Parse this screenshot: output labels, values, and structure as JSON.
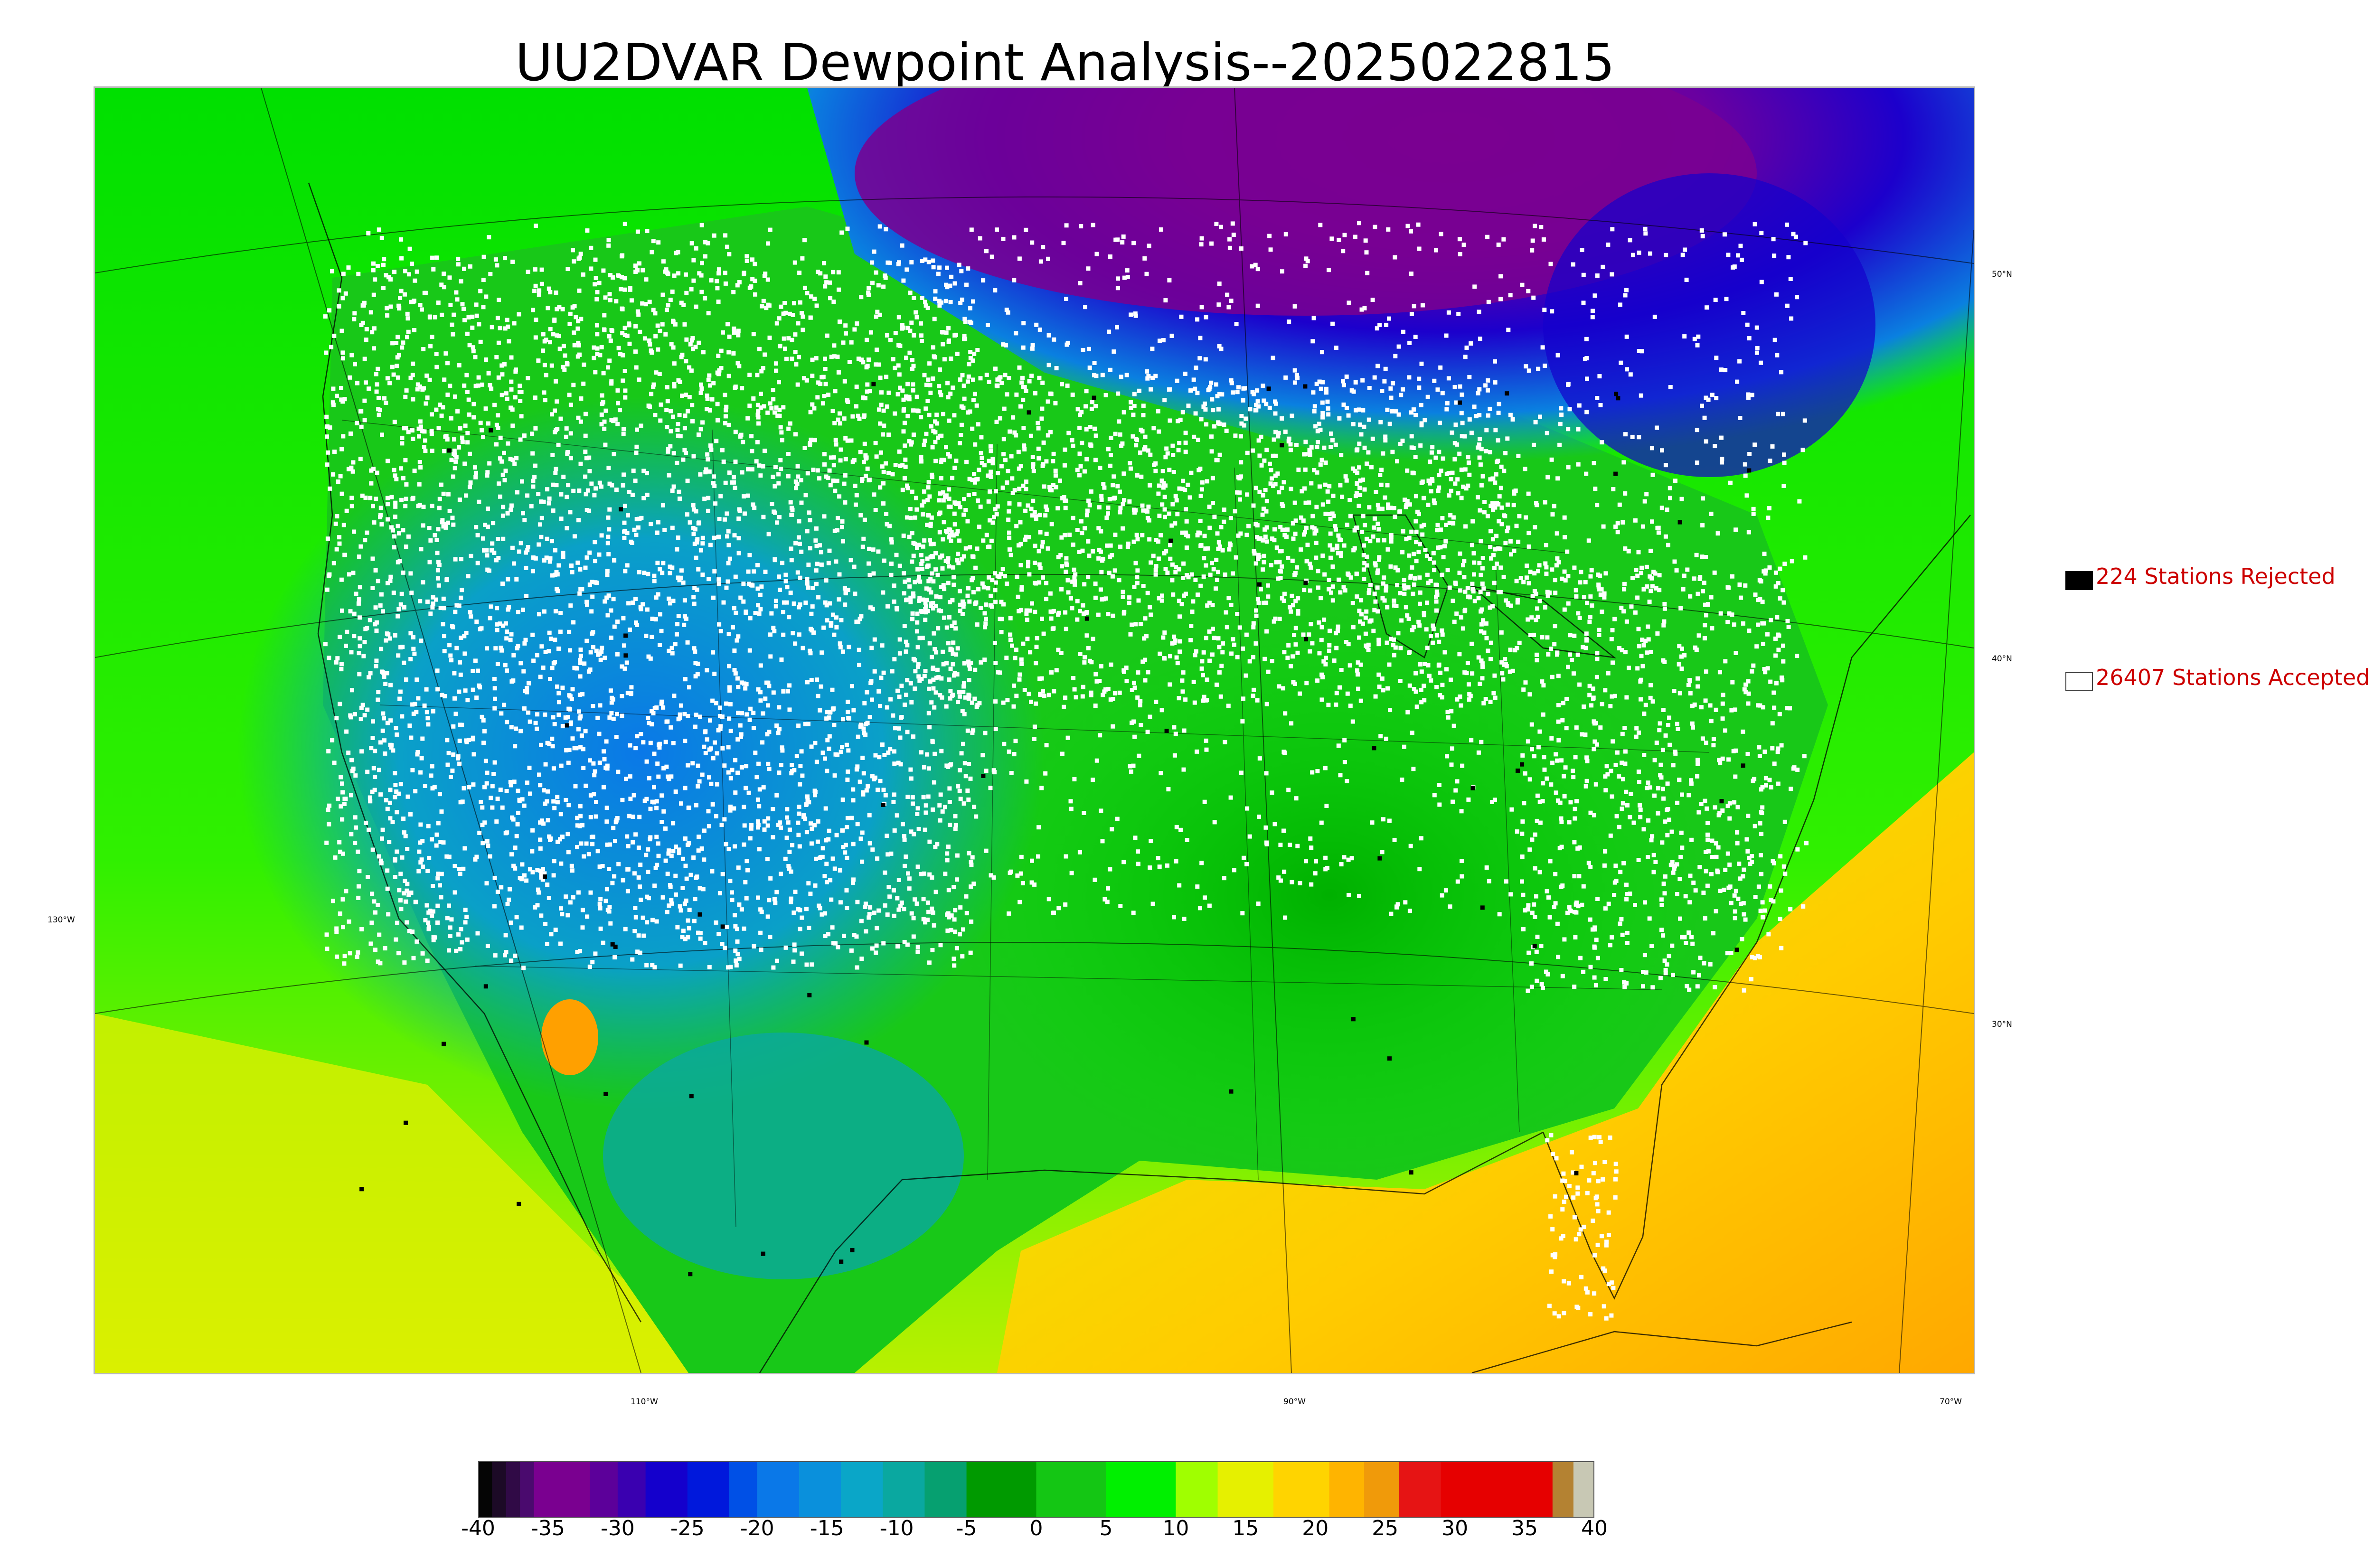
{
  "title": "UU2DVAR Dewpoint Analysis--2025022815",
  "map": {
    "latitude_labels": [
      "50°N",
      "40°N",
      "30°N"
    ],
    "longitude_labels": [
      "130°W",
      "110°W",
      "90°W",
      "70°W"
    ],
    "station_marker_colors": {
      "accepted": "#ffffff",
      "rejected": "#000000"
    }
  },
  "legend": {
    "rejected": {
      "label": "224 Stations Rejected",
      "count": 224,
      "swatch": "#000000",
      "text_color": "#cc0000"
    },
    "accepted": {
      "label": "26407 Stations Accepted",
      "count": 26407,
      "swatch": "#ffffff",
      "text_color": "#cc0000"
    }
  },
  "colorbar": {
    "range": [
      -40,
      40
    ],
    "tick_labels": [
      "-40",
      "-35",
      "-30",
      "-25",
      "-20",
      "-15",
      "-10",
      "-5",
      "0",
      "5",
      "10",
      "15",
      "20",
      "25",
      "30",
      "35",
      "40"
    ],
    "bands": [
      {
        "from": -40,
        "to": -39,
        "color": "#050505"
      },
      {
        "from": -39,
        "to": -38,
        "color": "#1c0a26"
      },
      {
        "from": -38,
        "to": -37,
        "color": "#300a46"
      },
      {
        "from": -37,
        "to": -36,
        "color": "#4a0a6e"
      },
      {
        "from": -36,
        "to": -32,
        "color": "#7a0090"
      },
      {
        "from": -32,
        "to": -30,
        "color": "#5c009a"
      },
      {
        "from": -30,
        "to": -28,
        "color": "#3a00b0"
      },
      {
        "from": -28,
        "to": -25,
        "color": "#1400cc"
      },
      {
        "from": -25,
        "to": -22,
        "color": "#0018dc"
      },
      {
        "from": -22,
        "to": -20,
        "color": "#0050e6"
      },
      {
        "from": -20,
        "to": -17,
        "color": "#0a78e8"
      },
      {
        "from": -17,
        "to": -14,
        "color": "#0a90dc"
      },
      {
        "from": -14,
        "to": -11,
        "color": "#0aa6c8"
      },
      {
        "from": -11,
        "to": -8,
        "color": "#0aa8a0"
      },
      {
        "from": -8,
        "to": -5,
        "color": "#06a070"
      },
      {
        "from": -5,
        "to": 0,
        "color": "#009a00"
      },
      {
        "from": 0,
        "to": 5,
        "color": "#14c614"
      },
      {
        "from": 5,
        "to": 10,
        "color": "#00f000"
      },
      {
        "from": 10,
        "to": 13,
        "color": "#a0ff00"
      },
      {
        "from": 13,
        "to": 17,
        "color": "#e6f000"
      },
      {
        "from": 17,
        "to": 21,
        "color": "#ffd400"
      },
      {
        "from": 21,
        "to": 23.5,
        "color": "#ffb400"
      },
      {
        "from": 23.5,
        "to": 26,
        "color": "#f09a0a"
      },
      {
        "from": 26,
        "to": 29,
        "color": "#e61414"
      },
      {
        "from": 29,
        "to": 37,
        "color": "#e60000"
      },
      {
        "from": 37,
        "to": 38.5,
        "color": "#b48232"
      },
      {
        "from": 38.5,
        "to": 40,
        "color": "#c8c8b4"
      }
    ]
  }
}
